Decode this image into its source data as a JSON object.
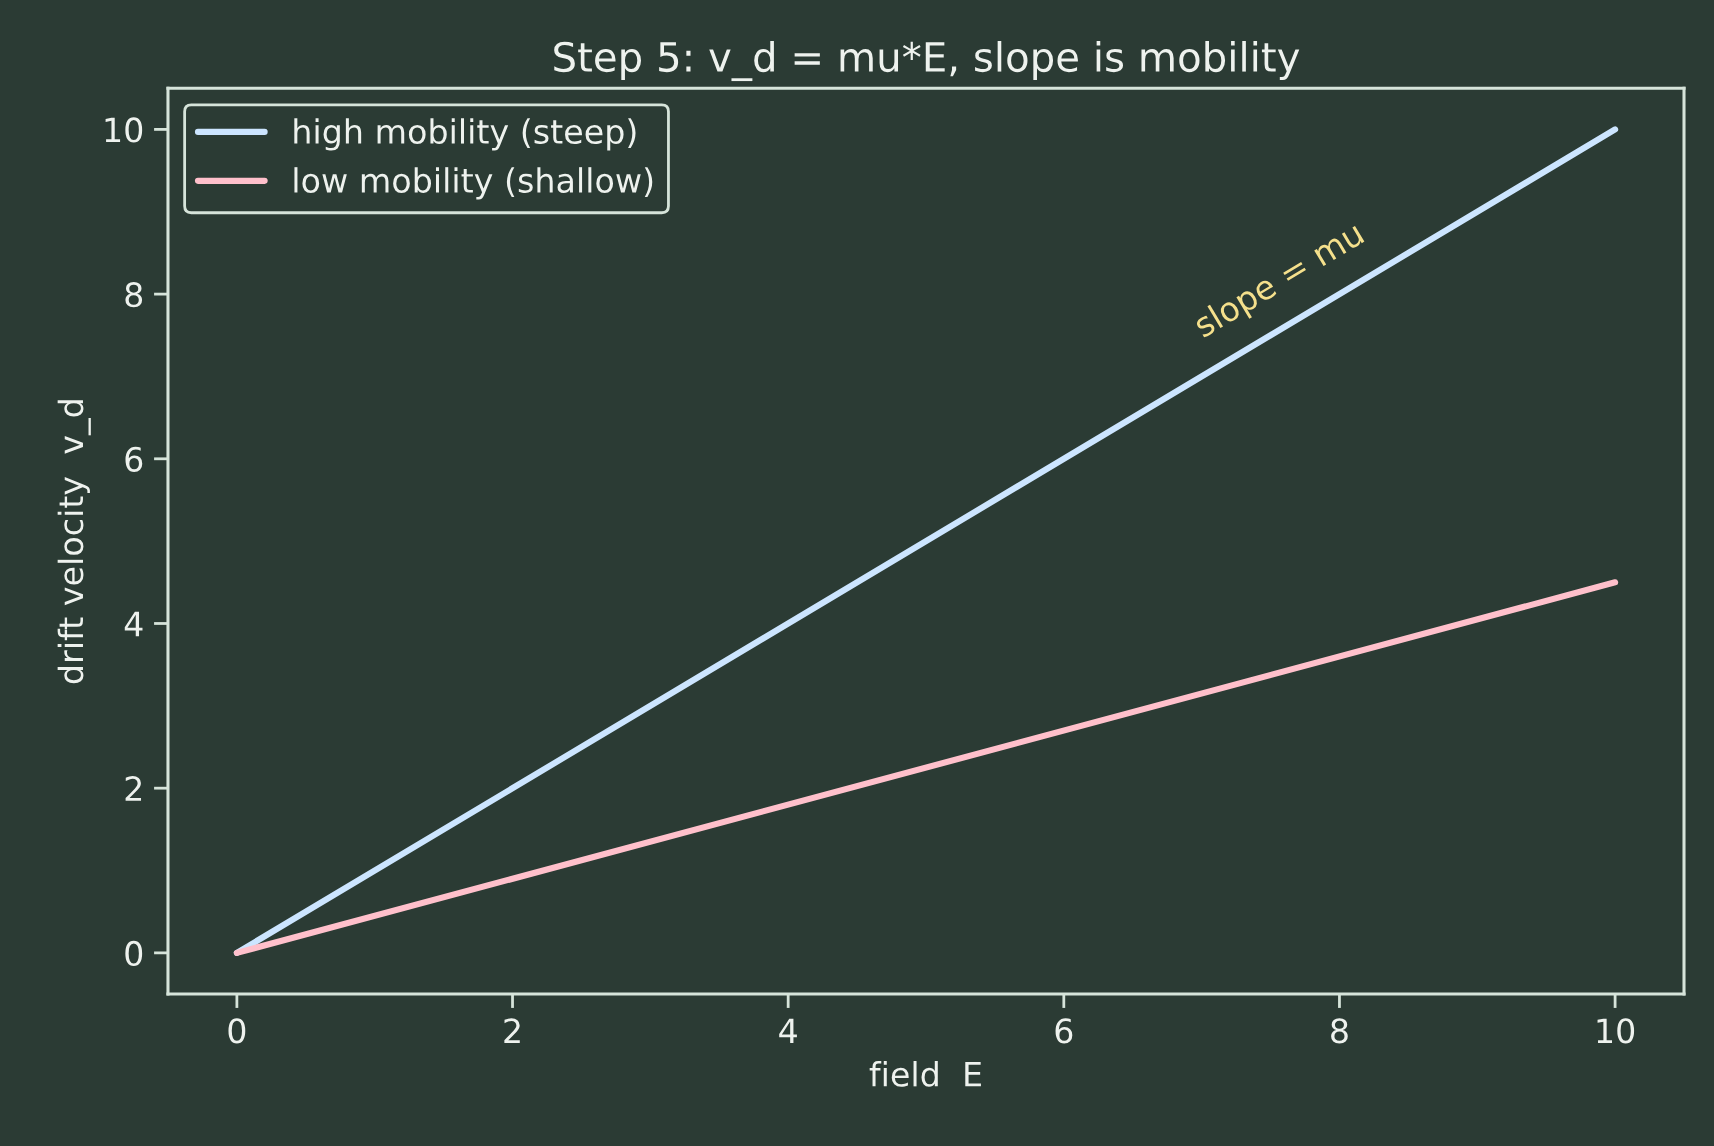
{
  "chart_data": {
    "type": "line",
    "title": "Step 5: v_d = mu*E, slope is mobility",
    "xlabel": "field  E",
    "ylabel": "drift velocity  v_d",
    "x": [
      0,
      10
    ],
    "series": [
      {
        "name": "high mobility (steep)",
        "color": "#cce5ff",
        "values": [
          0,
          10
        ]
      },
      {
        "name": "low mobility (shallow)",
        "color": "#ffc0cb",
        "values": [
          0,
          4.5
        ]
      }
    ],
    "xlim": [
      -0.5,
      10.5
    ],
    "ylim": [
      -0.5,
      10.5
    ],
    "xticks": [
      0,
      2,
      4,
      6,
      8,
      10
    ],
    "yticks": [
      0,
      2,
      4,
      6,
      8,
      10
    ],
    "grid": false,
    "legend": "top left",
    "marker": "none",
    "line_style": "solid",
    "annotations": [
      "slope = mu"
    ]
  }
}
